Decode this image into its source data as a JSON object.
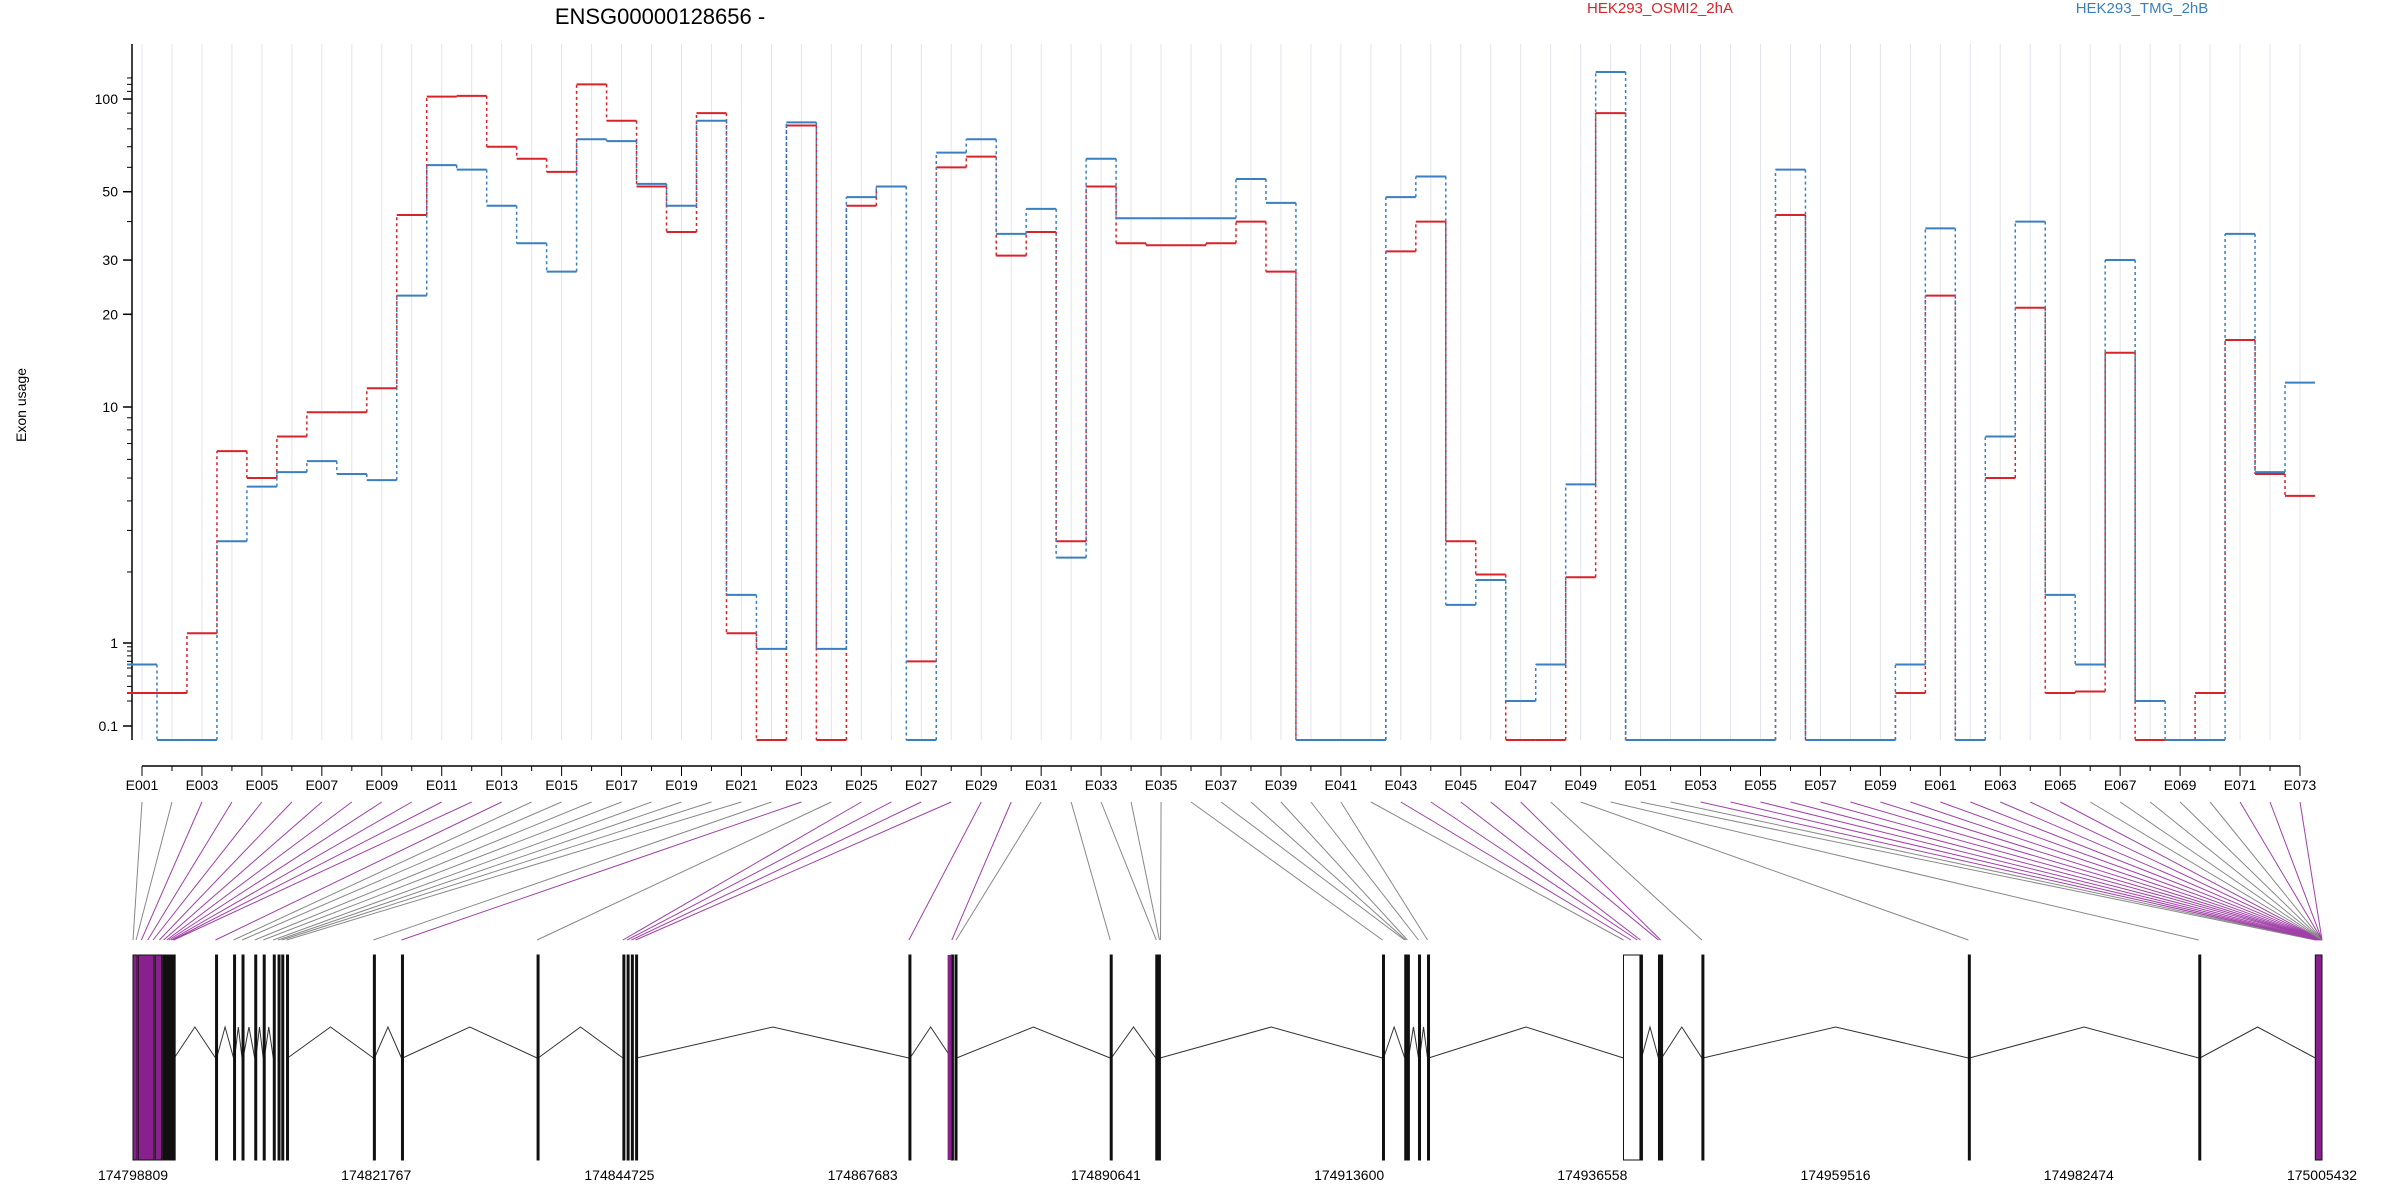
{
  "title": "ENSG00000128656 -",
  "colors": {
    "osmi": "#d9232a",
    "tmg": "#3a7fc0",
    "link_normal": "#888888",
    "link_highlight": "#a040a8",
    "exon_highlight": "#8a1f8e",
    "grid": "#e3e3ef"
  },
  "chart_data": {
    "type": "line",
    "title": "ENSG00000128656 -",
    "ylabel": "Exon usage",
    "xlabel": "",
    "y_scale": "log",
    "y_ticks": [
      "0.1",
      "1",
      "10",
      "20",
      "30",
      "50",
      "100"
    ],
    "exon_ids": [
      "E001",
      "E002",
      "E003",
      "E004",
      "E005",
      "E006",
      "E007",
      "E008",
      "E009",
      "E010",
      "E011",
      "E012",
      "E013",
      "E014",
      "E015",
      "E016",
      "E017",
      "E018",
      "E019",
      "E020",
      "E021",
      "E022",
      "E023",
      "E024",
      "E025",
      "E026",
      "E027",
      "E028",
      "E029",
      "E030",
      "E031",
      "E032",
      "E033",
      "E034",
      "E035",
      "E036",
      "E037",
      "E038",
      "E039",
      "E040",
      "E041",
      "E042",
      "E043",
      "E044",
      "E045",
      "E046",
      "E047",
      "E048",
      "E049",
      "E050",
      "E051",
      "E052",
      "E053",
      "E054",
      "E055",
      "E056",
      "E057",
      "E058",
      "E059",
      "E060",
      "E061",
      "E062",
      "E063",
      "E064",
      "E065",
      "E066",
      "E067",
      "E068",
      "E069",
      "E070",
      "E071",
      "E072",
      "E073"
    ],
    "x_tick_labels": [
      "E001",
      "E003",
      "E005",
      "E007",
      "E009",
      "E011",
      "E013",
      "E015",
      "E017",
      "E019",
      "E021",
      "E023",
      "E025",
      "E027",
      "E029",
      "E031",
      "E033",
      "E035",
      "E037",
      "E039",
      "E041",
      "E043",
      "E045",
      "E047",
      "E049",
      "E051",
      "E053",
      "E055",
      "E057",
      "E059",
      "E061",
      "E063",
      "E065",
      "E067",
      "E069",
      "E071",
      "E073"
    ],
    "series": [
      {
        "name": "HEK293_OSMI2_2hA",
        "color": "#d9232a",
        "values": [
          0.25,
          0.25,
          1.1,
          6.5,
          5,
          7.5,
          9.5,
          9.5,
          11.5,
          42,
          103,
          104,
          70,
          64,
          58,
          120,
          85,
          52,
          37,
          90,
          1.1,
          0.08,
          82,
          0.08,
          45,
          52,
          0.6,
          60,
          65,
          31,
          37,
          2.7,
          52,
          34,
          33.5,
          33.5,
          34,
          40,
          27.5,
          0.08,
          0.08,
          0.08,
          32,
          40,
          2.7,
          1.95,
          0.08,
          0.08,
          1.9,
          90,
          0.08,
          0.08,
          0.08,
          0.08,
          0.08,
          42,
          0.08,
          0.08,
          0.08,
          0.25,
          23,
          0.08,
          5,
          21,
          0.25,
          0.26,
          15,
          0.08,
          0.08,
          0.25,
          16.5,
          5.2,
          4.2
        ]
      },
      {
        "name": "HEK293_TMG_2hB",
        "color": "#3a7fc0",
        "values": [
          0.55,
          0.08,
          0.08,
          2.7,
          4.6,
          5.3,
          5.9,
          5.2,
          4.9,
          23,
          61,
          59,
          45,
          34,
          27.5,
          74,
          73,
          53,
          45,
          85,
          1.6,
          0.85,
          84,
          0.85,
          48,
          52,
          0.08,
          67,
          74,
          36.5,
          44,
          2.3,
          64,
          41,
          41,
          41,
          41,
          55,
          46,
          0.08,
          0.08,
          0.08,
          48,
          56,
          1.45,
          1.85,
          0.2,
          0.55,
          4.7,
          140,
          0.08,
          0.08,
          0.08,
          0.08,
          0.08,
          59,
          0.08,
          0.08,
          0.08,
          0.55,
          38,
          0.08,
          7.5,
          40,
          1.6,
          0.55,
          30,
          0.2,
          0.08,
          0.08,
          36.5,
          5.3,
          12
        ]
      }
    ],
    "legend": [
      "HEK293_OSMI2_2hA",
      "HEK293_TMG_2hB"
    ],
    "legend_position": "top-right",
    "genomic_ticks": [
      "174798809",
      "174821767",
      "174844725",
      "174867683",
      "174890641",
      "174913600",
      "174936558",
      "174959516",
      "174982474",
      "175005432"
    ],
    "genomic_range": [
      174798809,
      175005432
    ],
    "highlighted_exons": [
      "E003",
      "E004",
      "E005",
      "E006",
      "E007",
      "E008",
      "E009",
      "E010",
      "E011",
      "E012",
      "E013",
      "E023",
      "E025",
      "E026",
      "E027",
      "E028",
      "E029",
      "E030",
      "E043",
      "E044",
      "E045",
      "E046",
      "E047",
      "E053",
      "E054",
      "E055",
      "E056",
      "E057",
      "E058",
      "E059",
      "E060",
      "E061",
      "E062",
      "E063",
      "E064",
      "E065",
      "E071",
      "E072",
      "E073"
    ],
    "gene_model_exons_genomic": [
      [
        174798809,
        174799200
      ],
      [
        174799300,
        174800800
      ],
      [
        174800900,
        174801500
      ],
      [
        174801800,
        174802100
      ],
      [
        174801600,
        174801700
      ],
      [
        174801750,
        174801800
      ],
      [
        174802150,
        174802250
      ],
      [
        174802300,
        174802400
      ],
      [
        174802450,
        174802550
      ],
      [
        174802600,
        174802700
      ],
      [
        174806600,
        174806700
      ],
      [
        174808300,
        174808400
      ],
      [
        174809100,
        174809200
      ],
      [
        174810300,
        174810400
      ],
      [
        174811100,
        174811200
      ],
      [
        174812050,
        174812150
      ],
      [
        174812500,
        174812600
      ],
      [
        174812850,
        174812950
      ],
      [
        174813300,
        174813400
      ],
      [
        174821500,
        174821600
      ],
      [
        174824150,
        174824250
      ],
      [
        174836950,
        174837050
      ],
      [
        174845050,
        174845150
      ],
      [
        174845450,
        174845550
      ],
      [
        174845850,
        174845950
      ],
      [
        174846250,
        174846350
      ],
      [
        174872050,
        174872150
      ],
      [
        174876050,
        174876250
      ],
      [
        174876400,
        174876550
      ],
      [
        174891050,
        174891150
      ],
      [
        174895350,
        174895500
      ],
      [
        174895600,
        174895750
      ],
      [
        174916750,
        174916850
      ],
      [
        174918850,
        174918950
      ],
      [
        174918950,
        174919050
      ],
      [
        174919100,
        174919200
      ],
      [
        174920150,
        174920250
      ],
      [
        174921000,
        174921100
      ],
      [
        174939500,
        174941050
      ],
      [
        174941100,
        174941200
      ],
      [
        174942800,
        174942900
      ],
      [
        174943000,
        174943100
      ],
      [
        174946900,
        174947000
      ],
      [
        174972050,
        174972150
      ],
      [
        174993800,
        174993900
      ],
      [
        175004800,
        175005432
      ]
    ]
  }
}
